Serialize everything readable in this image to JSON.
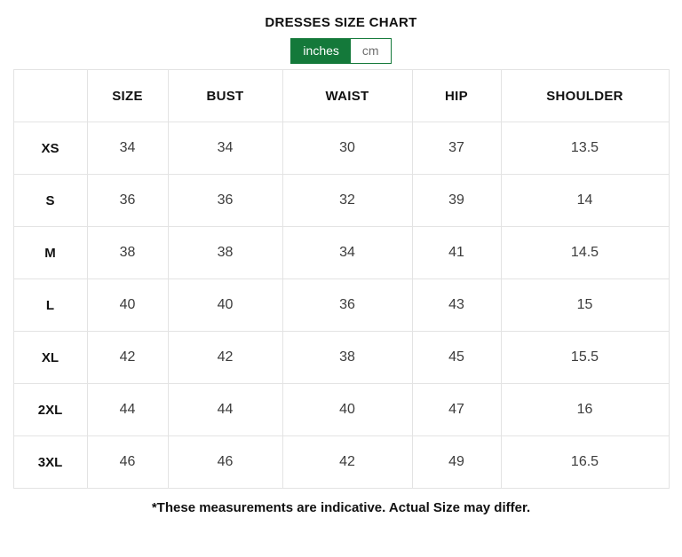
{
  "page": {
    "title": "DRESSES SIZE CHART",
    "footnote": "*These measurements are indicative. Actual Size may differ."
  },
  "unit_toggle": {
    "options": [
      {
        "label": "inches",
        "selected": true
      },
      {
        "label": "cm",
        "selected": false
      }
    ]
  },
  "size_table": {
    "headers": [
      "",
      "SIZE",
      "BUST",
      "WAIST",
      "HIP",
      "SHOULDER"
    ],
    "rows": [
      {
        "label": "XS",
        "values": [
          "34",
          "34",
          "30",
          "37",
          "13.5"
        ]
      },
      {
        "label": "S",
        "values": [
          "36",
          "36",
          "32",
          "39",
          "14"
        ]
      },
      {
        "label": "M",
        "values": [
          "38",
          "38",
          "34",
          "41",
          "14.5"
        ]
      },
      {
        "label": "L",
        "values": [
          "40",
          "40",
          "36",
          "43",
          "15"
        ]
      },
      {
        "label": "XL",
        "values": [
          "42",
          "42",
          "38",
          "45",
          "15.5"
        ]
      },
      {
        "label": "2XL",
        "values": [
          "44",
          "44",
          "40",
          "47",
          "16"
        ]
      },
      {
        "label": "3XL",
        "values": [
          "46",
          "46",
          "42",
          "49",
          "16.5"
        ]
      }
    ]
  },
  "colors": {
    "accent_green": "#14793a",
    "table_border": "#e3e3e3",
    "heading_text": "#111111",
    "cell_text": "#3c3c3c",
    "inactive_unit_text": "#6f6f6f"
  }
}
